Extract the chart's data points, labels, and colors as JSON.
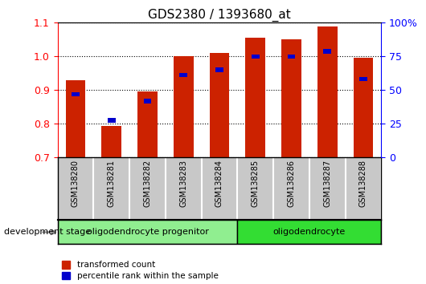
{
  "title": "GDS2380 / 1393680_at",
  "samples": [
    "GSM138280",
    "GSM138281",
    "GSM138282",
    "GSM138283",
    "GSM138284",
    "GSM138285",
    "GSM138286",
    "GSM138287",
    "GSM138288"
  ],
  "red_bars": [
    0.93,
    0.795,
    0.895,
    1.0,
    1.01,
    1.055,
    1.05,
    1.09,
    0.995
  ],
  "blue_markers": [
    0.888,
    0.81,
    0.868,
    0.945,
    0.96,
    1.0,
    1.0,
    1.015,
    0.933
  ],
  "ylim": [
    0.7,
    1.1
  ],
  "y2lim": [
    0,
    100
  ],
  "y2ticks": [
    0,
    25,
    50,
    75,
    100
  ],
  "y2ticklabels": [
    "0",
    "25",
    "50",
    "75",
    "100%"
  ],
  "yticks": [
    0.7,
    0.8,
    0.9,
    1.0,
    1.1
  ],
  "bar_width": 0.55,
  "bar_color": "#CC2200",
  "marker_color": "#0000CC",
  "groups": [
    {
      "label": "oligodendrocyte progenitor",
      "start": 0,
      "end": 4,
      "color": "#90EE90"
    },
    {
      "label": "oligodendrocyte",
      "start": 5,
      "end": 8,
      "color": "#33DD33"
    }
  ],
  "xtick_bg": "#C8C8C8",
  "legend_red": "transformed count",
  "legend_blue": "percentile rank within the sample",
  "dev_stage_label": "development stage"
}
